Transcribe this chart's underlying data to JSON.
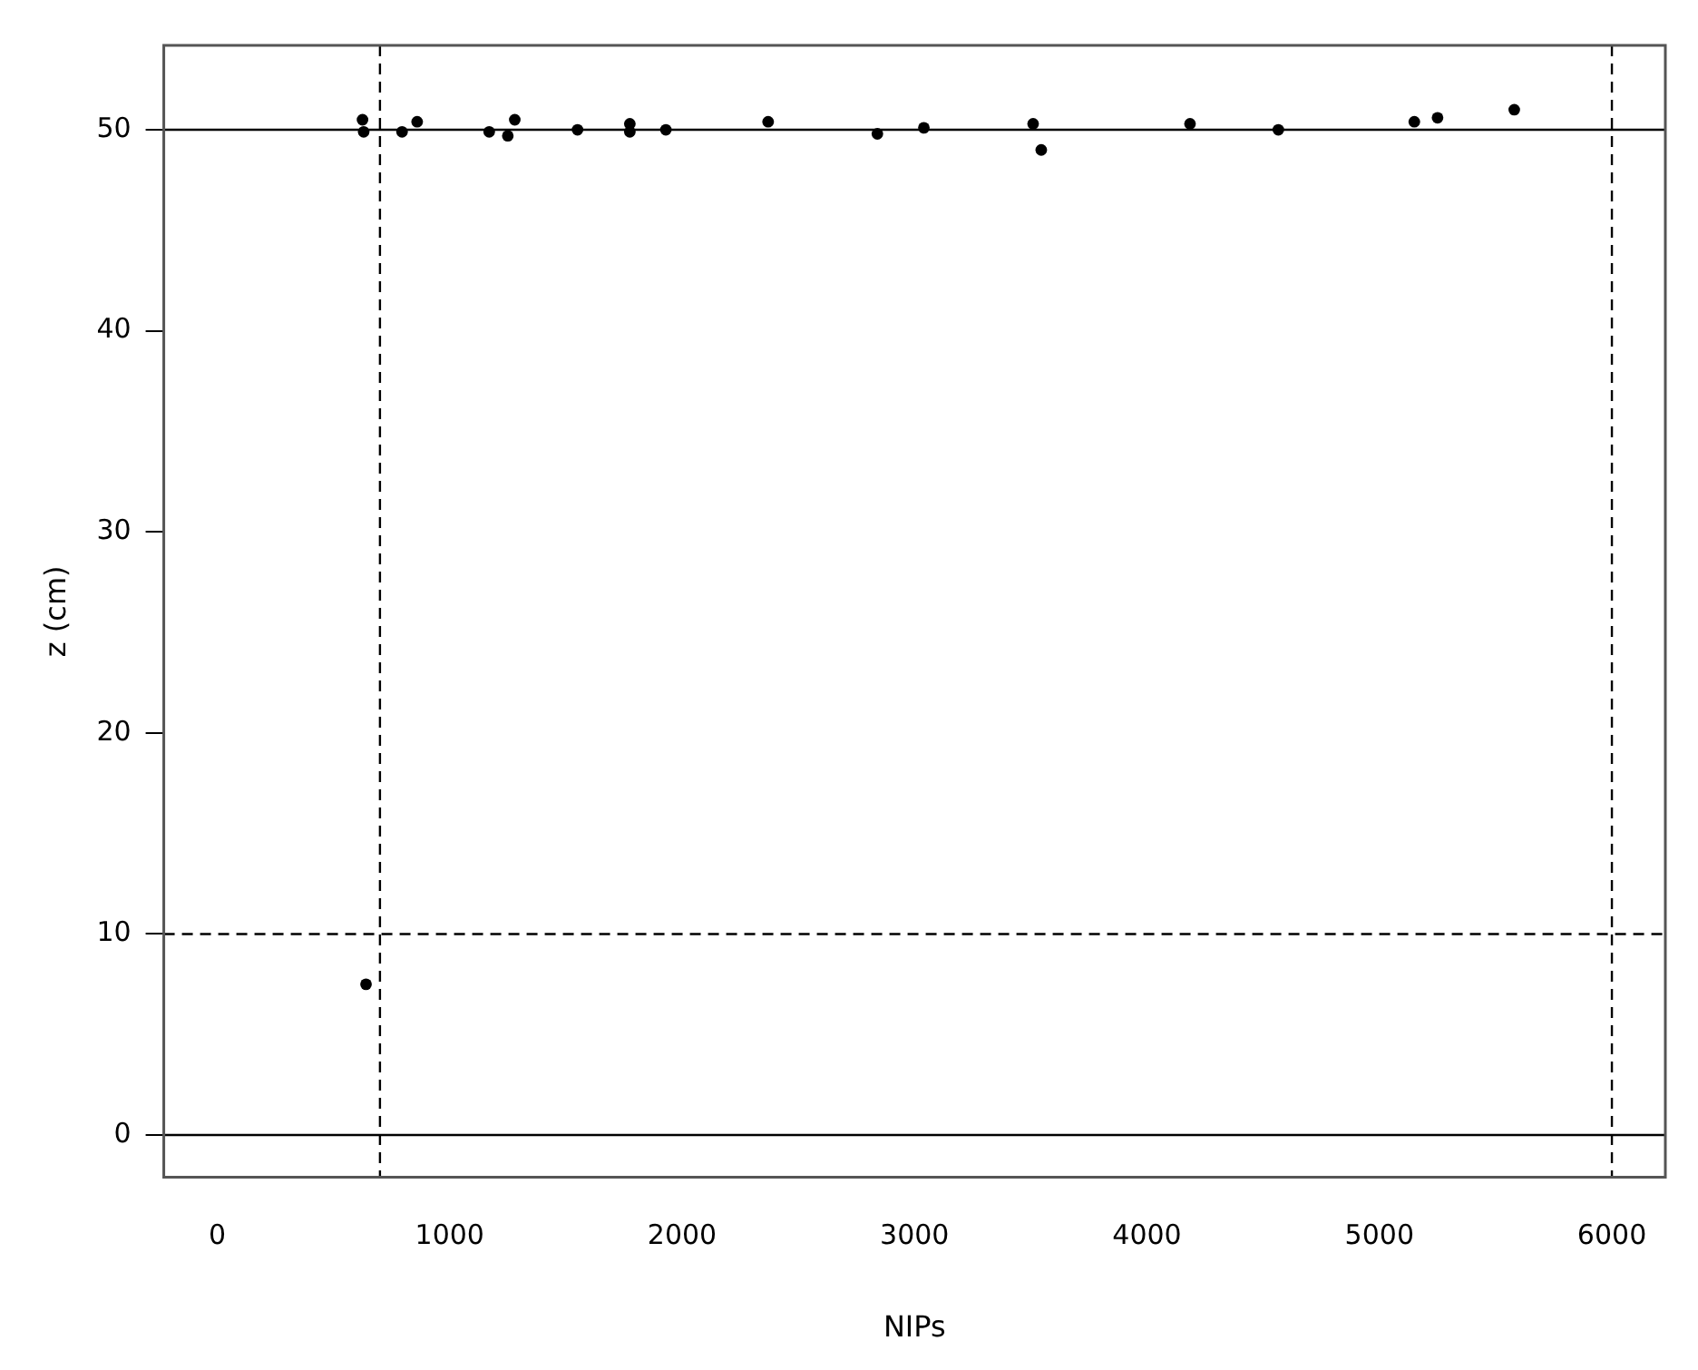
{
  "chart_data": {
    "type": "scatter",
    "xlabel": "NIPs",
    "ylabel": "z (cm)",
    "x": [
      625,
      630,
      795,
      860,
      1170,
      1250,
      1280,
      1550,
      1775,
      1775,
      1930,
      2370,
      2840,
      3040,
      3510,
      3545,
      4185,
      4565,
      5150,
      5250,
      5580,
      640
    ],
    "values": [
      50.5,
      49.9,
      49.9,
      50.4,
      49.9,
      49.7,
      50.5,
      50.0,
      50.3,
      49.9,
      50.0,
      50.4,
      49.8,
      50.1,
      50.3,
      49.0,
      50.3,
      50.0,
      50.4,
      50.6,
      51.0,
      7.5
    ],
    "color": "#000000",
    "marker": "circle",
    "grid": false,
    "legend": false,
    "xlim": [
      -230,
      6230
    ],
    "xticks": [
      0,
      1000,
      2000,
      3000,
      4000,
      5000,
      6000
    ],
    "ylim": [
      -2.1,
      54.2
    ],
    "yticks": [
      0,
      10,
      20,
      30,
      40,
      50
    ],
    "ref_lines": [
      {
        "axis": "y",
        "value": 50,
        "line_style": "solid",
        "color": "#000000"
      },
      {
        "axis": "y",
        "value": 0,
        "line_style": "solid",
        "color": "#000000"
      },
      {
        "axis": "y",
        "value": 10,
        "line_style": "dashed",
        "color": "#000000"
      },
      {
        "axis": "x",
        "value": 700,
        "line_style": "dashed",
        "color": "#000000"
      },
      {
        "axis": "x",
        "value": 6000,
        "line_style": "dashed",
        "color": "#000000"
      }
    ]
  }
}
